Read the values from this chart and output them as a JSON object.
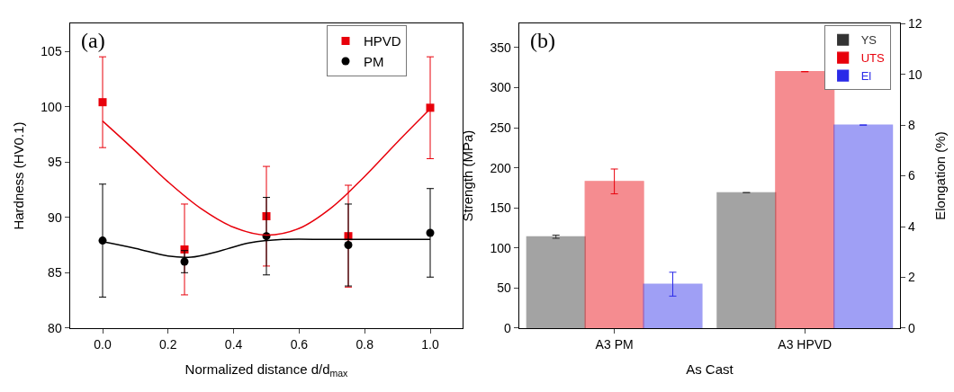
{
  "chart_data": [
    {
      "type": "scatter",
      "xlabel": "Normalized distance d/d$_{max}$",
      "ylabel": "Hardness (HV0.1)",
      "annotations": [
        "(a)"
      ],
      "x": [
        0,
        0.25,
        0.5,
        0.75,
        1.0
      ],
      "xlim": [
        -0.1,
        1.1
      ],
      "xticks": [
        {
          "value": 0,
          "label": "0.0"
        },
        {
          "value": 0.2,
          "label": "0.2"
        },
        {
          "value": 0.4,
          "label": "0.4"
        },
        {
          "value": 0.6,
          "label": "0.6"
        },
        {
          "value": 0.8,
          "label": "0.8"
        },
        {
          "value": 1.0,
          "label": "1.0"
        }
      ],
      "ylim": [
        80,
        107.5
      ],
      "yticks": [
        80,
        85,
        90,
        95,
        100,
        105
      ],
      "legend": "top right",
      "series": [
        {
          "name": "HPVD",
          "color": "#e8000b",
          "marker": "square",
          "values": [
            100.4,
            87.1,
            90.1,
            88.3,
            99.9
          ],
          "errors": [
            4.1,
            4.1,
            4.5,
            4.6,
            4.6
          ]
        },
        {
          "name": "PM",
          "color": "#000000",
          "marker": "circle",
          "values": [
            87.9,
            86.0,
            88.3,
            87.5,
            88.6
          ],
          "errors": [
            5.1,
            1.0,
            3.5,
            3.7,
            4.0
          ]
        },
        {
          "type": "line",
          "color": "#e8000b",
          "x": [
            0,
            0.1,
            0.2,
            0.3,
            0.4,
            0.5,
            0.6,
            0.7,
            0.8,
            0.9,
            1.0
          ],
          "values": [
            98.7,
            96.0,
            93.2,
            90.8,
            89.1,
            88.4,
            89.0,
            90.9,
            93.7,
            96.8,
            99.8
          ]
        },
        {
          "type": "line",
          "color": "#000000",
          "x": [
            0,
            0.1,
            0.2,
            0.27,
            0.35,
            0.45,
            0.55,
            0.7,
            1.0
          ],
          "values": [
            87.8,
            87.2,
            86.5,
            86.4,
            86.9,
            87.7,
            88.0,
            88.0,
            88.0
          ]
        }
      ]
    },
    {
      "type": "bar",
      "xlabel": "As Cast",
      "ylabel": "Strength (MPa)",
      "y2label": "Elongation (%)",
      "annotations": [
        "(b)"
      ],
      "categories": [
        "A3 PM",
        "A3 HPVD"
      ],
      "ylim": [
        0,
        380
      ],
      "yticks": [
        0,
        50,
        100,
        150,
        200,
        250,
        300,
        350
      ],
      "y2lim": [
        0,
        12
      ],
      "y2ticks": [
        0,
        2,
        4,
        6,
        8,
        10,
        12
      ],
      "legend": "top right",
      "series": [
        {
          "name": "YS",
          "color": "#333333",
          "values": [
            114,
            169
          ],
          "errors": [
            2,
            null
          ]
        },
        {
          "name": "UTS",
          "color": "#e8000b",
          "values": [
            183,
            320
          ],
          "errors": [
            15.5,
            null
          ]
        },
        {
          "name": "El",
          "color": "#2a2ae8",
          "axis": "y2",
          "values": [
            1.73,
            8.0
          ],
          "errors": [
            0.47,
            null
          ]
        }
      ]
    }
  ]
}
